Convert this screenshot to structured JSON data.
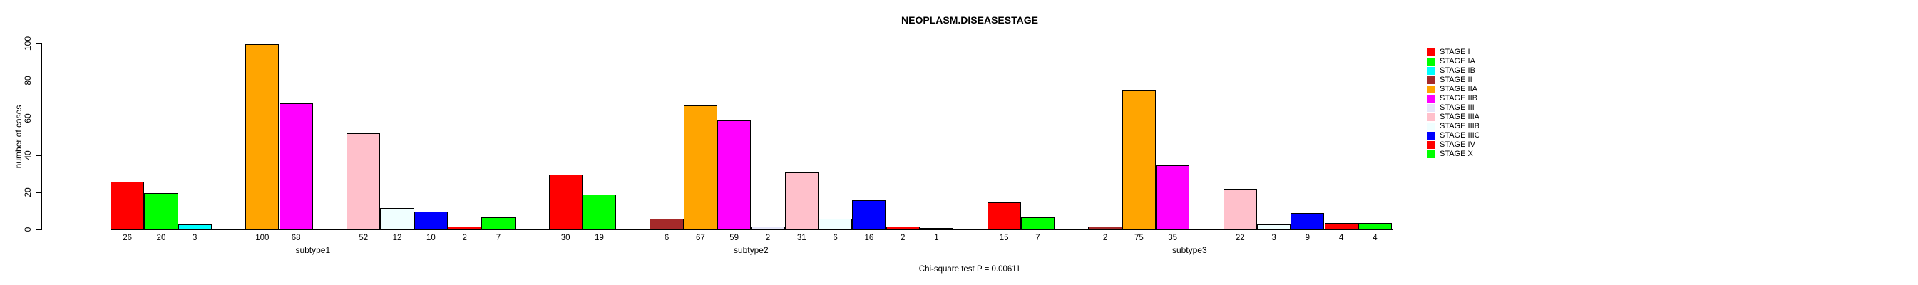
{
  "chart_data": {
    "type": "bar",
    "title": "NEOPLASM.DISEASESTAGE",
    "ylabel": "number of cases",
    "footer": "Chi-square test P = 0.00611",
    "categories": [
      "subtype1",
      "subtype2",
      "subtype3"
    ],
    "ylim": [
      0,
      100
    ],
    "yticks": [
      0,
      20,
      40,
      60,
      80,
      100
    ],
    "grid": false,
    "legend_position": "right",
    "bar_value_labels": true,
    "zero_values_hidden": true,
    "series": [
      {
        "name": "STAGE I",
        "color": "#FF0000",
        "values": [
          26,
          30,
          15
        ]
      },
      {
        "name": "STAGE IA",
        "color": "#00FF00",
        "values": [
          20,
          19,
          7
        ]
      },
      {
        "name": "STAGE IB",
        "color": "#00FFFF",
        "values": [
          3,
          0,
          0
        ]
      },
      {
        "name": "STAGE II",
        "color": "#A52A2A",
        "values": [
          0,
          6,
          2
        ]
      },
      {
        "name": "STAGE IIA",
        "color": "#FFA500",
        "values": [
          100,
          67,
          75
        ]
      },
      {
        "name": "STAGE IIB",
        "color": "#FF00FF",
        "values": [
          68,
          59,
          35
        ]
      },
      {
        "name": "STAGE III",
        "color": "#E6E6FA",
        "values": [
          0,
          2,
          0
        ]
      },
      {
        "name": "STAGE IIIA",
        "color": "#FFC0CB",
        "values": [
          52,
          31,
          22
        ]
      },
      {
        "name": "STAGE IIIB",
        "color": "#F0FFFF",
        "values": [
          12,
          6,
          3
        ]
      },
      {
        "name": "STAGE IIIC",
        "color": "#0000FF",
        "values": [
          10,
          16,
          9
        ]
      },
      {
        "name": "STAGE IV",
        "color": "#FF0000",
        "values": [
          2,
          2,
          4
        ]
      },
      {
        "name": "STAGE X",
        "color": "#00FF00",
        "values": [
          7,
          1,
          4
        ]
      }
    ]
  }
}
